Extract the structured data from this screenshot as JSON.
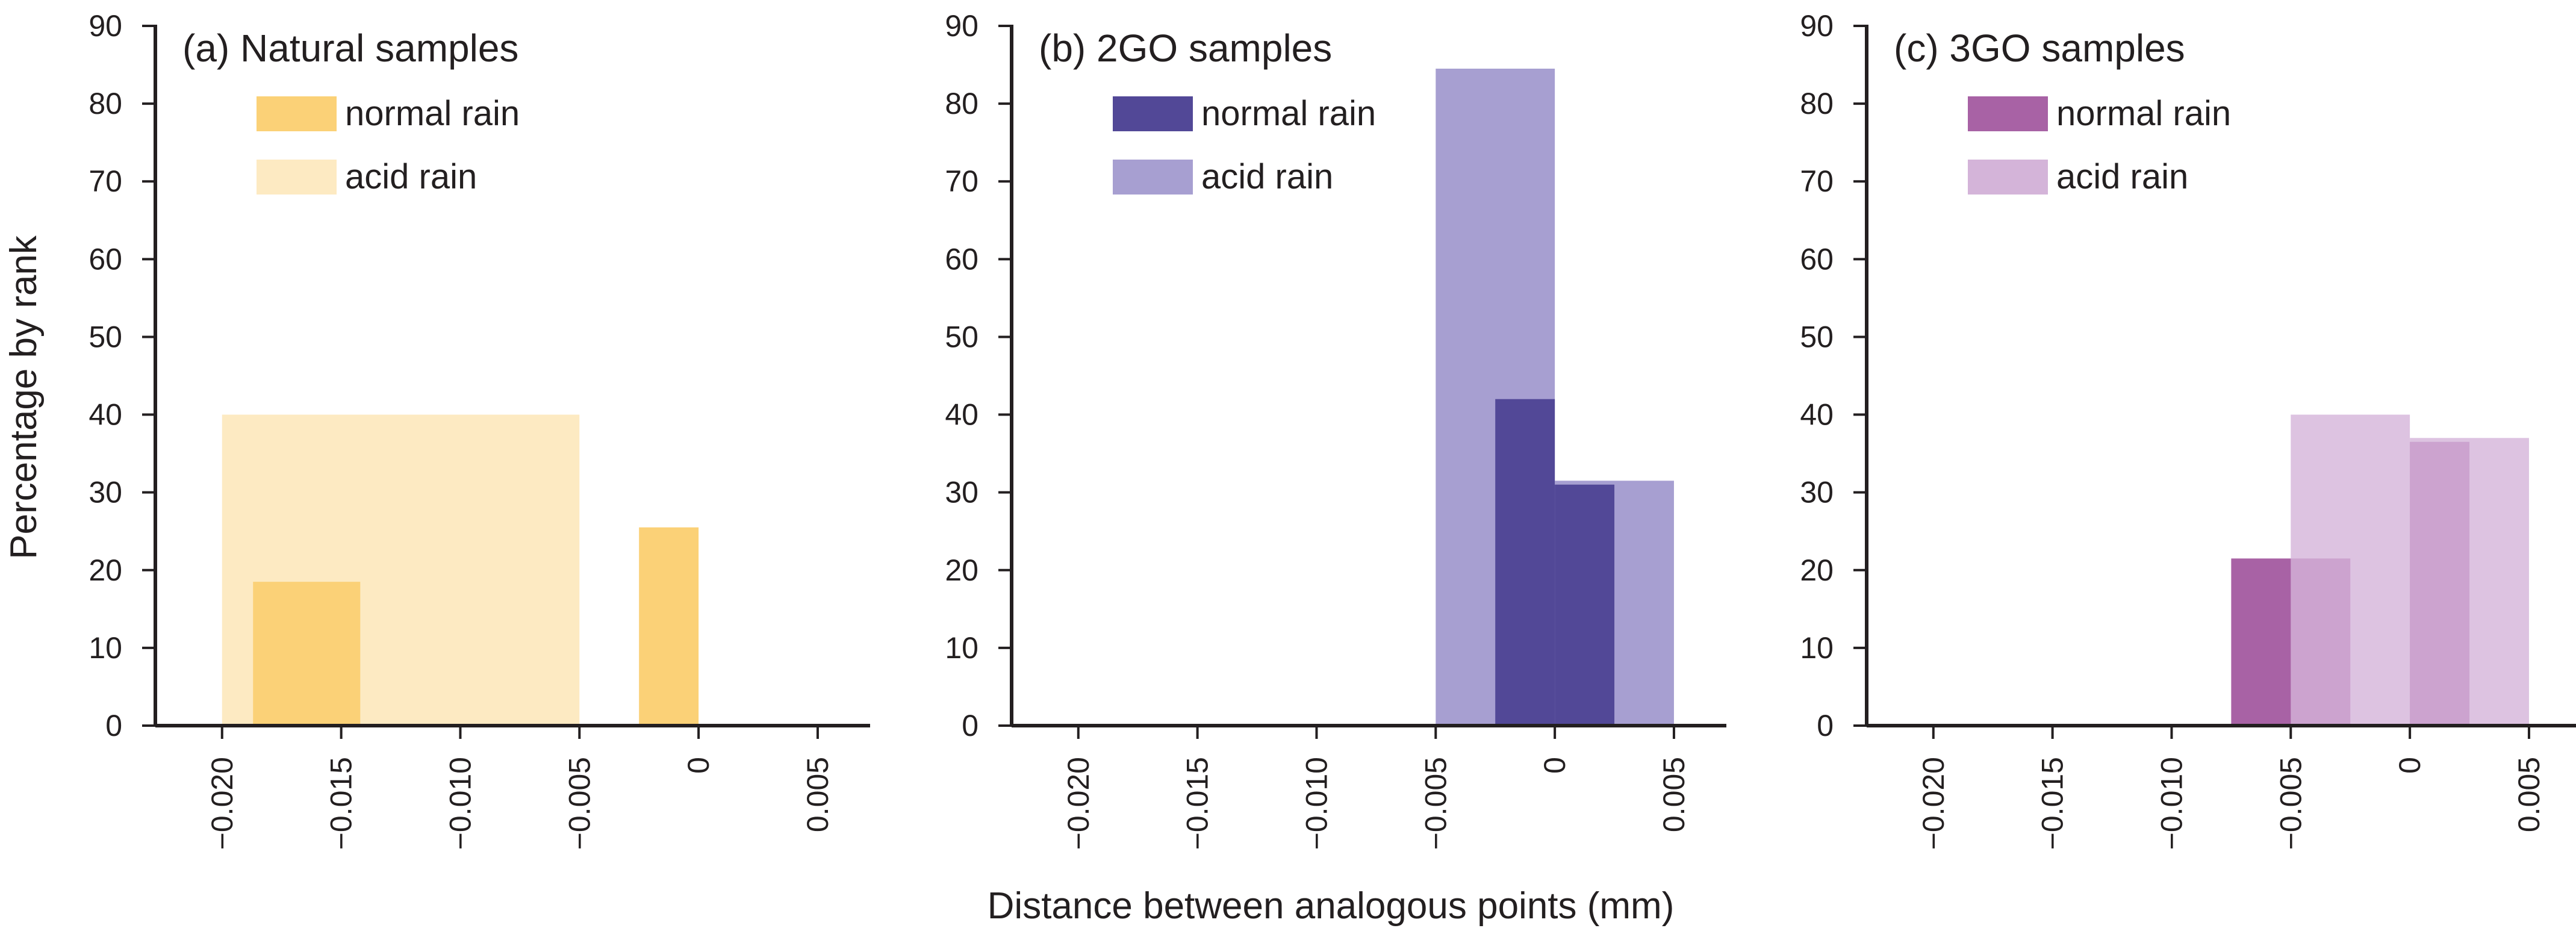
{
  "figure": {
    "ylabel": "Percentage by rank",
    "xlabel": "Distance between analogous points (mm)"
  },
  "chart_data": [
    {
      "type": "bar",
      "title": "(a) Natural samples",
      "xlabel": "Distance between analogous points (mm)",
      "ylabel": "Percentage by rank",
      "xlim": [
        -0.0228,
        0.0072
      ],
      "ylim": [
        0,
        90
      ],
      "xticks": [
        -0.02,
        -0.015,
        -0.01,
        -0.005,
        0,
        0.005
      ],
      "xtick_labels": [
        "−0.020",
        "−0.015",
        "−0.010",
        "−0.005",
        "0",
        "0.005"
      ],
      "yticks": [
        0,
        10,
        20,
        30,
        40,
        50,
        60,
        70,
        80,
        90
      ],
      "legend_position": "top-left",
      "series": [
        {
          "name": "normal rain",
          "color": "#fbd177",
          "opacity": 1,
          "bins": [
            {
              "x0": -0.0187,
              "x1": -0.0142,
              "value": 18.5
            },
            {
              "x0": -0.0025,
              "x1": 0.0,
              "value": 25.5
            }
          ]
        },
        {
          "name": "acid rain",
          "color": "#fbd177",
          "opacity": 0.45,
          "bins": [
            {
              "x0": -0.02,
              "x1": -0.005,
              "value": 40.0
            }
          ]
        }
      ]
    },
    {
      "type": "bar",
      "title": "(b) 2GO samples",
      "xlabel": "Distance between analogous points (mm)",
      "ylabel": "Percentage by rank",
      "xlim": [
        -0.0228,
        0.0072
      ],
      "ylim": [
        0,
        90
      ],
      "xticks": [
        -0.02,
        -0.015,
        -0.01,
        -0.005,
        0,
        0.005
      ],
      "xtick_labels": [
        "−0.020",
        "−0.015",
        "−0.010",
        "−0.005",
        "0",
        "0.005"
      ],
      "yticks": [
        0,
        10,
        20,
        30,
        40,
        50,
        60,
        70,
        80,
        90
      ],
      "legend_position": "top-left",
      "series": [
        {
          "name": "acid rain",
          "color": "#a79fd1",
          "opacity": 1,
          "bins": [
            {
              "x0": -0.005,
              "x1": 0.0,
              "value": 84.5
            },
            {
              "x0": 0.0,
              "x1": 0.005,
              "value": 31.5
            }
          ]
        },
        {
          "name": "normal rain",
          "color": "#524897",
          "opacity": 1,
          "bins": [
            {
              "x0": -0.0025,
              "x1": 0.0,
              "value": 42.0
            },
            {
              "x0": 0.0,
              "x1": 0.0025,
              "value": 31.0
            }
          ]
        }
      ]
    },
    {
      "type": "bar",
      "title": "(c) 3GO samples",
      "xlabel": "Distance between analogous points (mm)",
      "ylabel": "Percentage by rank",
      "xlim": [
        -0.0228,
        0.0072
      ],
      "ylim": [
        0,
        90
      ],
      "xticks": [
        -0.02,
        -0.015,
        -0.01,
        -0.005,
        0,
        0.005
      ],
      "xtick_labels": [
        "−0.020",
        "−0.015",
        "−0.010",
        "−0.005",
        "0",
        "0.005"
      ],
      "yticks": [
        0,
        10,
        20,
        30,
        40,
        50,
        60,
        70,
        80,
        90
      ],
      "legend_position": "top-left",
      "series": [
        {
          "name": "normal rain",
          "color": "#a862a5",
          "opacity": 1,
          "bins": [
            {
              "x0": -0.0075,
              "x1": -0.0025,
              "value": 21.5
            },
            {
              "x0": 0.0,
              "x1": 0.0025,
              "value": 36.5
            }
          ]
        },
        {
          "name": "acid rain",
          "color": "#d4b4d9",
          "opacity": 0.8,
          "bins": [
            {
              "x0": -0.005,
              "x1": 0.0,
              "value": 40.0
            },
            {
              "x0": 0.0,
              "x1": 0.005,
              "value": 37.0
            }
          ]
        }
      ],
      "legend_colors": {
        "normal rain": "#a862a5",
        "acid rain": "#d4b4d9"
      }
    }
  ]
}
